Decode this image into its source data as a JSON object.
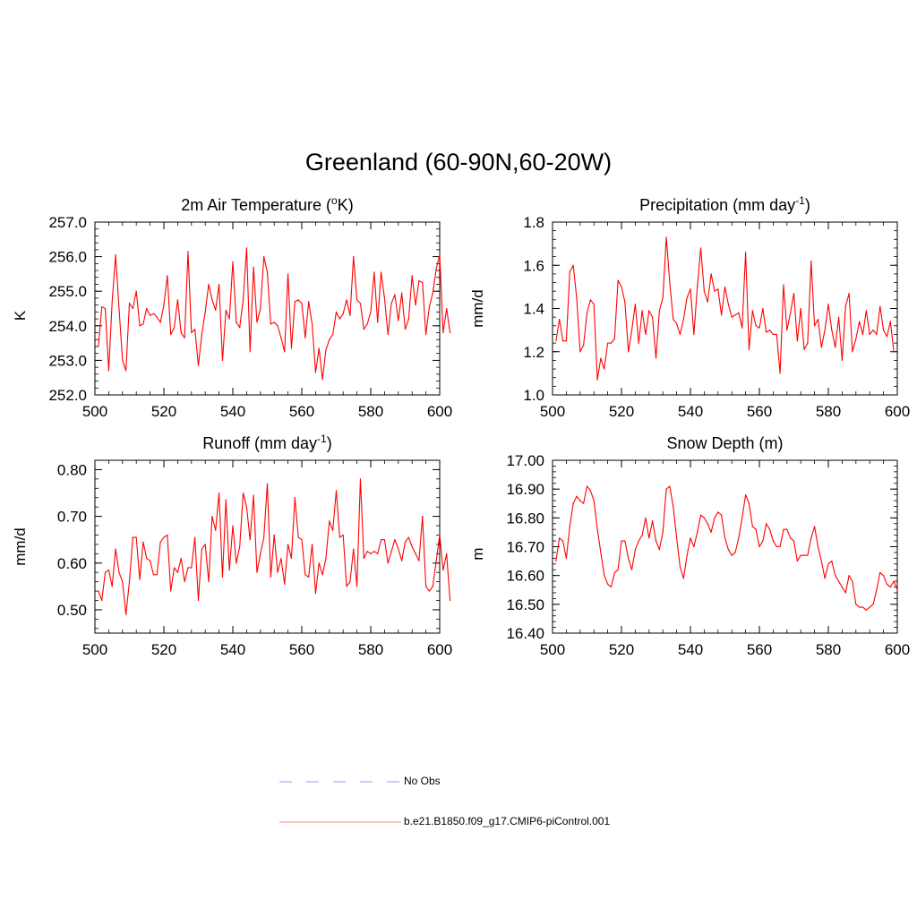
{
  "figure": {
    "title": "Greenland (60-90N,60-20W)"
  },
  "colors": {
    "model": "#ff0000",
    "obs": "#9999ff",
    "axis": "#000000"
  },
  "legend": [
    {
      "label": "No Obs",
      "style": "dashed",
      "color": "#9999ff"
    },
    {
      "label": "b.e21.B1850.f09_g17.CMIP6-piControl.001",
      "style": "solid",
      "color": "#ff8888"
    }
  ],
  "chart_data": [
    {
      "type": "line",
      "title": "2m Air Temperature (",
      "title_sup": "o",
      "title_after": "K)",
      "xlabel": "",
      "ylabel": "K",
      "xlim": [
        500,
        600
      ],
      "ylim": [
        252.0,
        257.0
      ],
      "xticks": [
        500,
        520,
        540,
        560,
        580,
        600
      ],
      "xtick_labels": [
        "500",
        "520",
        "540",
        "560",
        "580",
        "600"
      ],
      "yticks": [
        252.0,
        253.0,
        254.0,
        255.0,
        256.0,
        257.0
      ],
      "ytick_labels": [
        "252.0",
        "253.0",
        "254.0",
        "255.0",
        "256.0",
        "257.0"
      ],
      "x_start": 501,
      "series": [
        {
          "name": "b.e21.B1850.f09_g17.CMIP6-piControl.001",
          "values": [
            253.4,
            254.55,
            254.5,
            252.7,
            254.7,
            256.05,
            254.5,
            253.0,
            252.7,
            254.65,
            254.5,
            255.0,
            254.0,
            254.05,
            254.5,
            254.3,
            254.35,
            254.25,
            254.1,
            254.6,
            255.45,
            253.75,
            253.95,
            254.75,
            253.8,
            253.65,
            256.15,
            253.8,
            253.9,
            252.85,
            253.75,
            254.4,
            255.2,
            254.75,
            254.45,
            255.2,
            253.0,
            254.45,
            254.2,
            255.85,
            254.1,
            253.95,
            254.75,
            256.25,
            253.25,
            255.7,
            254.1,
            254.5,
            256.0,
            255.55,
            254.05,
            254.1,
            254.0,
            253.65,
            253.25,
            255.5,
            253.35,
            254.7,
            254.75,
            254.65,
            253.65,
            254.7,
            254.05,
            252.65,
            253.35,
            252.45,
            253.3,
            253.6,
            253.75,
            254.4,
            254.2,
            254.35,
            254.75,
            254.3,
            256.0,
            254.75,
            254.65,
            253.9,
            254.05,
            254.4,
            255.55,
            254.1,
            255.55,
            254.8,
            253.75,
            254.65,
            254.9,
            254.15,
            254.95,
            253.9,
            254.2,
            255.45,
            254.6,
            255.3,
            255.25,
            253.75,
            254.55,
            254.95,
            255.65,
            256.05,
            253.8,
            254.5,
            253.8
          ]
        }
      ]
    },
    {
      "type": "line",
      "title": "Precipitation (mm day",
      "title_sup": "-1",
      "title_after": ")",
      "xlabel": "",
      "ylabel": "mm/d",
      "xlim": [
        500,
        600
      ],
      "ylim": [
        1.0,
        1.8
      ],
      "xticks": [
        500,
        520,
        540,
        560,
        580,
        600
      ],
      "xtick_labels": [
        "500",
        "520",
        "540",
        "560",
        "580",
        "600"
      ],
      "yticks": [
        1.0,
        1.2,
        1.4,
        1.6,
        1.8
      ],
      "ytick_labels": [
        "1.0",
        "1.2",
        "1.4",
        "1.6",
        "1.8"
      ],
      "x_start": 501,
      "series": [
        {
          "name": "b.e21.B1850.f09_g17.CMIP6-piControl.001",
          "values": [
            1.25,
            1.35,
            1.25,
            1.25,
            1.57,
            1.6,
            1.45,
            1.2,
            1.23,
            1.38,
            1.44,
            1.42,
            1.07,
            1.17,
            1.12,
            1.24,
            1.24,
            1.26,
            1.53,
            1.5,
            1.43,
            1.2,
            1.3,
            1.42,
            1.24,
            1.39,
            1.28,
            1.39,
            1.36,
            1.17,
            1.39,
            1.45,
            1.73,
            1.52,
            1.35,
            1.33,
            1.28,
            1.35,
            1.45,
            1.49,
            1.28,
            1.5,
            1.68,
            1.48,
            1.43,
            1.56,
            1.48,
            1.49,
            1.37,
            1.5,
            1.42,
            1.36,
            1.37,
            1.38,
            1.31,
            1.66,
            1.21,
            1.39,
            1.32,
            1.31,
            1.4,
            1.29,
            1.3,
            1.28,
            1.28,
            1.1,
            1.51,
            1.3,
            1.38,
            1.47,
            1.25,
            1.4,
            1.21,
            1.24,
            1.62,
            1.32,
            1.35,
            1.22,
            1.3,
            1.42,
            1.3,
            1.22,
            1.36,
            1.16,
            1.41,
            1.47,
            1.2,
            1.26,
            1.34,
            1.28,
            1.39,
            1.28,
            1.3,
            1.28,
            1.41,
            1.3,
            1.27,
            1.34,
            1.2
          ]
        }
      ]
    },
    {
      "type": "line",
      "title": "Runoff (mm day",
      "title_sup": "-1",
      "title_after": ")",
      "xlabel": "",
      "ylabel": "mm/d",
      "xlim": [
        500,
        600
      ],
      "ylim": [
        0.45,
        0.82
      ],
      "xticks": [
        500,
        520,
        540,
        560,
        580,
        600
      ],
      "xtick_labels": [
        "500",
        "520",
        "540",
        "560",
        "580",
        "600"
      ],
      "yticks": [
        0.5,
        0.6,
        0.7,
        0.8
      ],
      "ytick_labels": [
        "0.50",
        "0.60",
        "0.70",
        "0.80"
      ],
      "x_start": 501,
      "series": [
        {
          "name": "b.e21.B1850.f09_g17.CMIP6-piControl.001",
          "values": [
            0.54,
            0.52,
            0.58,
            0.585,
            0.55,
            0.63,
            0.58,
            0.56,
            0.49,
            0.56,
            0.655,
            0.655,
            0.565,
            0.645,
            0.61,
            0.605,
            0.575,
            0.575,
            0.645,
            0.655,
            0.66,
            0.54,
            0.59,
            0.58,
            0.61,
            0.56,
            0.59,
            0.59,
            0.655,
            0.52,
            0.63,
            0.64,
            0.56,
            0.7,
            0.67,
            0.75,
            0.57,
            0.735,
            0.585,
            0.68,
            0.6,
            0.635,
            0.75,
            0.72,
            0.65,
            0.745,
            0.58,
            0.62,
            0.655,
            0.77,
            0.57,
            0.66,
            0.58,
            0.61,
            0.555,
            0.64,
            0.61,
            0.74,
            0.655,
            0.65,
            0.575,
            0.57,
            0.64,
            0.535,
            0.6,
            0.575,
            0.61,
            0.69,
            0.67,
            0.755,
            0.655,
            0.66,
            0.55,
            0.56,
            0.63,
            0.55,
            0.78,
            0.61,
            0.625,
            0.62,
            0.625,
            0.62,
            0.65,
            0.65,
            0.6,
            0.625,
            0.65,
            0.63,
            0.605,
            0.645,
            0.655,
            0.635,
            0.62,
            0.605,
            0.7,
            0.55,
            0.54,
            0.55,
            0.605,
            0.66,
            0.585,
            0.62,
            0.52
          ]
        }
      ]
    },
    {
      "type": "line",
      "title": "Snow Depth (m)",
      "title_sup": "",
      "title_after": "",
      "xlabel": "",
      "ylabel": "m",
      "xlim": [
        500,
        600
      ],
      "ylim": [
        16.4,
        17.0
      ],
      "xticks": [
        500,
        520,
        540,
        560,
        580,
        600
      ],
      "xtick_labels": [
        "500",
        "520",
        "540",
        "560",
        "580",
        "600"
      ],
      "yticks": [
        16.4,
        16.5,
        16.6,
        16.7,
        16.8,
        16.9,
        17.0
      ],
      "ytick_labels": [
        "16.40",
        "16.50",
        "16.60",
        "16.70",
        "16.80",
        "16.90",
        "17.00"
      ],
      "x_start": 501,
      "series": [
        {
          "name": "b.e21.B1850.f09_g17.CMIP6-piControl.001",
          "values": [
            16.65,
            16.73,
            16.72,
            16.66,
            16.77,
            16.85,
            16.875,
            16.86,
            16.85,
            16.91,
            16.895,
            16.86,
            16.76,
            16.68,
            16.6,
            16.57,
            16.56,
            16.61,
            16.62,
            16.72,
            16.72,
            16.66,
            16.62,
            16.69,
            16.72,
            16.74,
            16.8,
            16.73,
            16.79,
            16.72,
            16.69,
            16.75,
            16.9,
            16.91,
            16.84,
            16.73,
            16.63,
            16.59,
            16.67,
            16.73,
            16.7,
            16.75,
            16.81,
            16.8,
            16.78,
            16.75,
            16.8,
            16.82,
            16.81,
            16.73,
            16.69,
            16.67,
            16.68,
            16.73,
            16.8,
            16.88,
            16.85,
            16.77,
            16.76,
            16.7,
            16.72,
            16.78,
            16.76,
            16.72,
            16.7,
            16.7,
            16.76,
            16.76,
            16.73,
            16.72,
            16.65,
            16.67,
            16.67,
            16.67,
            16.73,
            16.77,
            16.7,
            16.65,
            16.59,
            16.64,
            16.65,
            16.6,
            16.58,
            16.56,
            16.54,
            16.6,
            16.58,
            16.5,
            16.49,
            16.49,
            16.48,
            16.49,
            16.5,
            16.55,
            16.61,
            16.6,
            16.57,
            16.56,
            16.58,
            16.55
          ]
        }
      ]
    }
  ]
}
